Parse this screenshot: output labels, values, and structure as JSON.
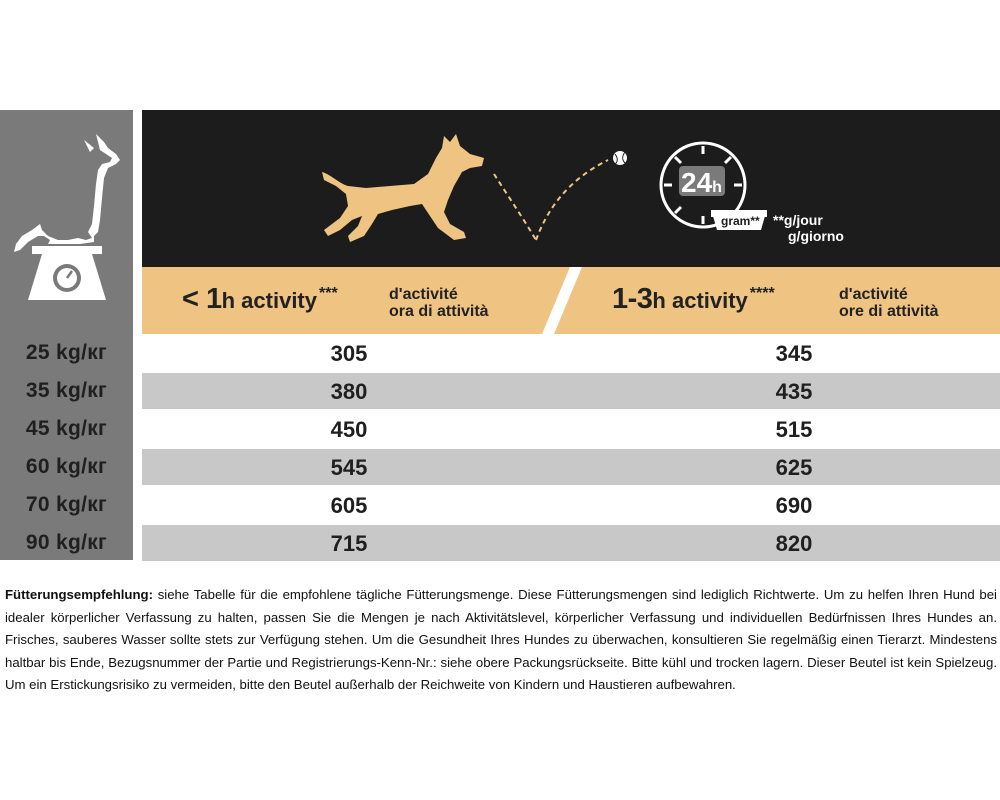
{
  "header": {
    "col1": {
      "prefix": "< 1",
      "unit": "h activity",
      "stars": "***",
      "fr": "d'activité",
      "it": "ora di attività"
    },
    "col2": {
      "prefix": "1-3",
      "unit": "h activity",
      "stars": "****",
      "fr": "d'activité",
      "it": "ore di attività"
    },
    "clock_label": "24",
    "clock_unit": "h",
    "gram_label": "gram**",
    "gram_note_line1": "**g/jour",
    "gram_note_line2": "g/giorno"
  },
  "table": {
    "rows": [
      {
        "weight": "25 kg/кг",
        "low": "305",
        "high": "345"
      },
      {
        "weight": "35 kg/кг",
        "low": "380",
        "high": "435"
      },
      {
        "weight": "45 kg/кг",
        "low": "450",
        "high": "515"
      },
      {
        "weight": "60 kg/кг",
        "low": "545",
        "high": "625"
      },
      {
        "weight": "70 kg/кг",
        "low": "605",
        "high": "690"
      },
      {
        "weight": "90 kg/кг",
        "low": "715",
        "high": "820"
      }
    ]
  },
  "description": {
    "heading": "Fütterungsempfehlung:",
    "body": " siehe Tabelle für die empfohlene tägliche Fütterungsmenge. Diese Fütterungsmengen sind lediglich Richtwerte. Um zu helfen Ihren Hund bei idealer körperlicher Verfassung zu halten, passen Sie die Mengen je nach Aktivitätslevel, körperlicher Verfassung und individuellen Bedürfnissen Ihres Hundes an. Frisches, sauberes Wasser sollte stets zur Verfügung stehen. Um die Gesundheit Ihres Hundes zu überwachen, konsultieren Sie regelmäßig einen Tierarzt. Mindestens haltbar bis Ende, Bezugsnummer der Partie und Registrierungs-Kenn-Nr.: siehe obere Packungsrückseite.  Bitte kühl und trocken lagern. Dieser Beutel ist kein Spielzeug. Um ein Erstickungsrisiko zu vermeiden, bitte den Beutel außerhalb der Reichweite von Kindern und Haustieren aufbewahren."
  },
  "colors": {
    "sidebar": "#7a7a7a",
    "header_dark": "#1c1c1c",
    "header_tan": "#efc483",
    "row_shade": "#c8c8c8",
    "dog_tan": "#efc483"
  }
}
